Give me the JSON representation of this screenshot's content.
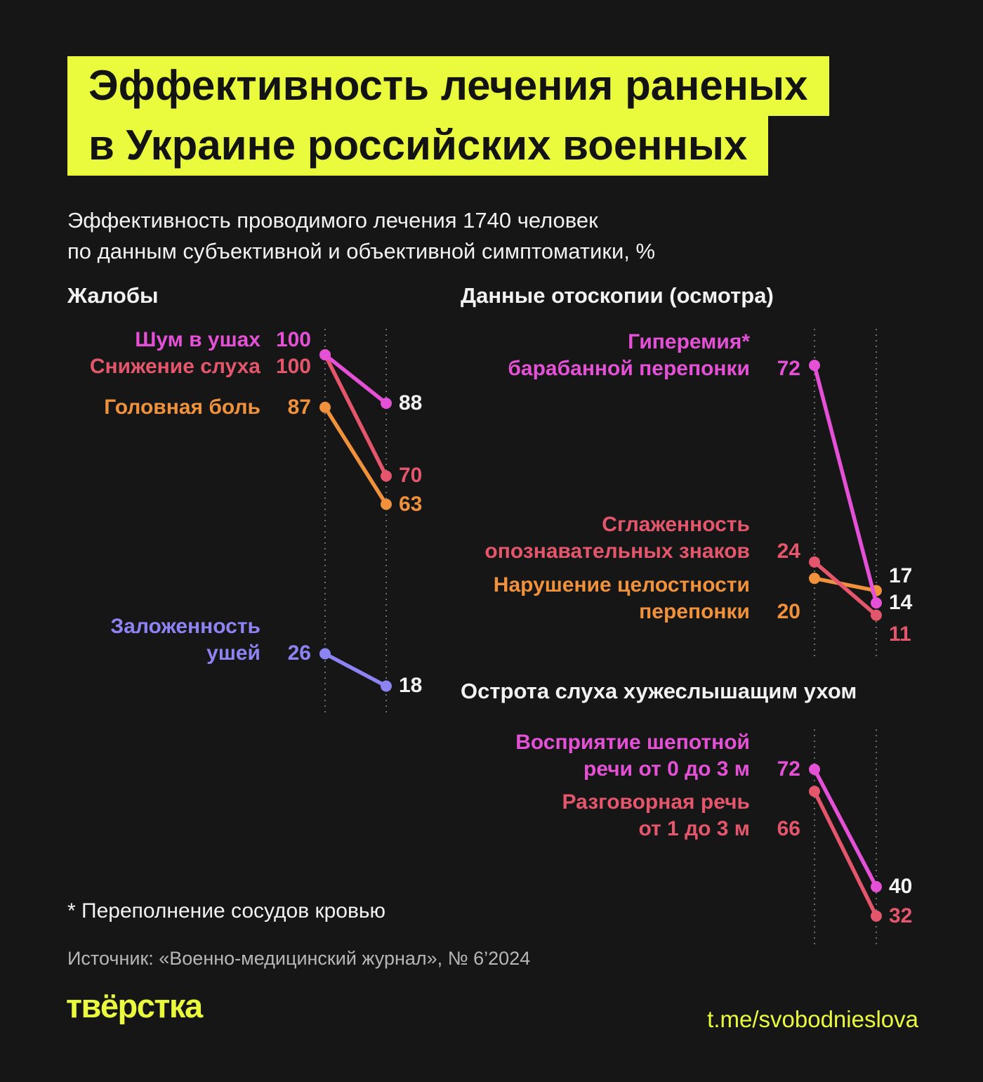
{
  "page": {
    "title_lines": [
      "Эффективность лечения раненых",
      "в Украине российских военных"
    ],
    "subtitle_lines": [
      "Эффективность проводимого лечения 1740 человек",
      "по данным субъективной и объективной симптоматики, %"
    ],
    "footnote": "* Переполнение сосудов кровью",
    "source": "Источник: «Военно-медицинский журнал», № 6’2024",
    "logo_text": "твёрстка",
    "telegram_handle": "t.me/svobodnieslova"
  },
  "colors": {
    "background": "#161616",
    "accent_yellow": "#eafb3d",
    "title_text": "#131313",
    "text_white": "#f2f2f2",
    "text_gray": "#b7b7b7",
    "axis_gray": "#6f6f6f",
    "magenta": "#e551d6",
    "crimson": "#e4566b",
    "orange": "#f0913c",
    "violet": "#8d83f3"
  },
  "chart_data": [
    {
      "type": "slope",
      "title": "Жалобы",
      "ylim": [
        0,
        100
      ],
      "series": [
        {
          "label_lines": [
            "Шум в ушах"
          ],
          "color": "#e551d6",
          "start": 100,
          "end": 88,
          "end_color": "#f2f2f2"
        },
        {
          "label_lines": [
            "Снижение слуха"
          ],
          "color": "#e4566b",
          "start": 100,
          "end": 70,
          "end_color": "#e4566b"
        },
        {
          "label_lines": [
            "Головная боль"
          ],
          "color": "#f0913c",
          "start": 87,
          "end": 63,
          "end_color": "#f0913c"
        },
        {
          "label_lines": [
            "Заложенность",
            "ушей"
          ],
          "color": "#8d83f3",
          "start": 26,
          "end": 18,
          "end_color": "#f2f2f2"
        }
      ]
    },
    {
      "type": "slope",
      "title": "Данные отоскопии (осмотра)",
      "ylim": [
        0,
        72
      ],
      "series": [
        {
          "label_lines": [
            "Гиперемия*",
            "барабанной перепонки"
          ],
          "color": "#e551d6",
          "start": 72,
          "end": 14,
          "end_color": "#f2f2f2"
        },
        {
          "label_lines": [
            "Сглаженность",
            "опознавательных знаков"
          ],
          "color": "#e4566b",
          "start": 24,
          "end": 11,
          "end_color": "#e4566b"
        },
        {
          "label_lines": [
            "Нарушение целостности",
            "перепонки"
          ],
          "color": "#f0913c",
          "start": 20,
          "end": 17,
          "end_color": "#f2f2f2"
        }
      ]
    },
    {
      "type": "slope",
      "title": "Острота слуха хужеслышащим ухом",
      "ylim": [
        0,
        72
      ],
      "series": [
        {
          "label_lines": [
            "Восприятие шепотной",
            "речи от 0 до 3 м"
          ],
          "color": "#e551d6",
          "start": 72,
          "end": 40,
          "end_color": "#f2f2f2"
        },
        {
          "label_lines": [
            "Разговорная речь",
            "от 1 до 3 м"
          ],
          "color": "#e4566b",
          "start": 66,
          "end": 32,
          "end_color": "#e4566b"
        }
      ]
    }
  ]
}
